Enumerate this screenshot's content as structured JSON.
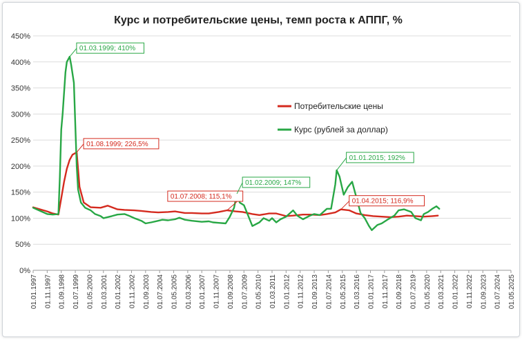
{
  "chart_data": {
    "type": "line",
    "title": "Курс и потребительские цены, темп роста к АППГ, %",
    "xlabel": "",
    "ylabel": "",
    "ylim": [
      0,
      450
    ],
    "yticks": [
      "0%",
      "50%",
      "100%",
      "150%",
      "200%",
      "250%",
      "300%",
      "350%",
      "400%",
      "450%"
    ],
    "xrange": [
      "1997-01",
      "2025-05"
    ],
    "xticks": [
      "01.01.1997",
      "01.11.1997",
      "01.09.1998",
      "01.07.1999",
      "01.05.2000",
      "01.03.2001",
      "01.01.2002",
      "01.11.2002",
      "01.09.2003",
      "01.07.2004",
      "01.05.2005",
      "01.03.2006",
      "01.01.2007",
      "01.11.2007",
      "01.09.2008",
      "01.07.2009",
      "01.05.2010",
      "01.03.2011",
      "01.01.2012",
      "01.11.2012",
      "01.09.2013",
      "01.07.2014",
      "01.05.2015",
      "01.03.2016",
      "01.01.2017",
      "01.11.2017",
      "01.09.2018",
      "01.07.2019",
      "01.05.2020",
      "01.03.2021",
      "01.01.2022",
      "01.11.2022",
      "01.09.2023",
      "01.07.2024",
      "01.05.2025"
    ],
    "grid": "horizontal",
    "legend_placement": "center-right",
    "series": [
      {
        "name": "Потребительские цены",
        "color": "#d42a1e",
        "points": [
          [
            "1997-01",
            121
          ],
          [
            "1997-06",
            117
          ],
          [
            "1997-11",
            113
          ],
          [
            "1998-03",
            109
          ],
          [
            "1998-07",
            107
          ],
          [
            "1998-09",
            138
          ],
          [
            "1998-11",
            170
          ],
          [
            "1999-01",
            195
          ],
          [
            "1999-03",
            212
          ],
          [
            "1999-05",
            222
          ],
          [
            "1999-08",
            226.5
          ],
          [
            "1999-10",
            160
          ],
          [
            "2000-01",
            130
          ],
          [
            "2000-06",
            121
          ],
          [
            "2001-01",
            120
          ],
          [
            "2001-06",
            124
          ],
          [
            "2002-01",
            117
          ],
          [
            "2002-06",
            116
          ],
          [
            "2003-01",
            115
          ],
          [
            "2003-06",
            114
          ],
          [
            "2004-01",
            112
          ],
          [
            "2004-06",
            111
          ],
          [
            "2005-01",
            112
          ],
          [
            "2005-06",
            113
          ],
          [
            "2006-01",
            110
          ],
          [
            "2006-06",
            110
          ],
          [
            "2007-01",
            109
          ],
          [
            "2007-06",
            109
          ],
          [
            "2008-01",
            112
          ],
          [
            "2008-07",
            115.1
          ],
          [
            "2009-01",
            113
          ],
          [
            "2009-06",
            112
          ],
          [
            "2010-01",
            108
          ],
          [
            "2010-06",
            106
          ],
          [
            "2011-01",
            109
          ],
          [
            "2011-06",
            109
          ],
          [
            "2012-01",
            104
          ],
          [
            "2012-06",
            105
          ],
          [
            "2013-01",
            107
          ],
          [
            "2013-06",
            107
          ],
          [
            "2014-01",
            106
          ],
          [
            "2014-06",
            108
          ],
          [
            "2014-12",
            111
          ],
          [
            "2015-04",
            116.9
          ],
          [
            "2015-10",
            115
          ],
          [
            "2016-03",
            109
          ],
          [
            "2016-09",
            106
          ],
          [
            "2017-03",
            104
          ],
          [
            "2017-09",
            103
          ],
          [
            "2018-03",
            102
          ],
          [
            "2018-09",
            103
          ],
          [
            "2019-03",
            105
          ],
          [
            "2019-09",
            104
          ],
          [
            "2020-03",
            103
          ],
          [
            "2020-09",
            104
          ],
          [
            "2021-01",
            105
          ]
        ]
      },
      {
        "name": "Курс (рублей за доллар)",
        "color": "#28a745",
        "points": [
          [
            "1997-01",
            120
          ],
          [
            "1997-06",
            114
          ],
          [
            "1997-11",
            108
          ],
          [
            "1998-03",
            107
          ],
          [
            "1998-07",
            108
          ],
          [
            "1998-08",
            180
          ],
          [
            "1998-09",
            270
          ],
          [
            "1998-10",
            300
          ],
          [
            "1998-12",
            380
          ],
          [
            "1999-01",
            400
          ],
          [
            "1999-03",
            410
          ],
          [
            "1999-04",
            395
          ],
          [
            "1999-06",
            360
          ],
          [
            "1999-08",
            200
          ],
          [
            "1999-09",
            155
          ],
          [
            "1999-11",
            130
          ],
          [
            "2000-02",
            120
          ],
          [
            "2000-06",
            115
          ],
          [
            "2000-09",
            108
          ],
          [
            "2001-01",
            104
          ],
          [
            "2001-03",
            100
          ],
          [
            "2001-09",
            104
          ],
          [
            "2002-01",
            107
          ],
          [
            "2002-06",
            108
          ],
          [
            "2002-09",
            105
          ],
          [
            "2003-01",
            100
          ],
          [
            "2003-06",
            95
          ],
          [
            "2003-09",
            90
          ],
          [
            "2004-01",
            92
          ],
          [
            "2004-06",
            95
          ],
          [
            "2004-09",
            97
          ],
          [
            "2005-01",
            96
          ],
          [
            "2005-06",
            98
          ],
          [
            "2005-09",
            101
          ],
          [
            "2006-01",
            97
          ],
          [
            "2006-06",
            95
          ],
          [
            "2007-01",
            93
          ],
          [
            "2007-06",
            94
          ],
          [
            "2007-09",
            92
          ],
          [
            "2008-01",
            91
          ],
          [
            "2008-06",
            90
          ],
          [
            "2008-09",
            103
          ],
          [
            "2008-12",
            120
          ],
          [
            "2009-02",
            147
          ],
          [
            "2009-04",
            130
          ],
          [
            "2009-07",
            125
          ],
          [
            "2009-10",
            105
          ],
          [
            "2010-01",
            85
          ],
          [
            "2010-06",
            92
          ],
          [
            "2010-09",
            100
          ],
          [
            "2011-01",
            95
          ],
          [
            "2011-03",
            100
          ],
          [
            "2011-06",
            92
          ],
          [
            "2011-09",
            98
          ],
          [
            "2012-01",
            103
          ],
          [
            "2012-06",
            115
          ],
          [
            "2012-09",
            105
          ],
          [
            "2013-01",
            98
          ],
          [
            "2013-06",
            105
          ],
          [
            "2013-09",
            108
          ],
          [
            "2014-01",
            106
          ],
          [
            "2014-06",
            118
          ],
          [
            "2014-09",
            118
          ],
          [
            "2014-12",
            165
          ],
          [
            "2015-01",
            192
          ],
          [
            "2015-03",
            180
          ],
          [
            "2015-06",
            145
          ],
          [
            "2015-09",
            160
          ],
          [
            "2015-12",
            170
          ],
          [
            "2016-03",
            140
          ],
          [
            "2016-06",
            110
          ],
          [
            "2016-09",
            100
          ],
          [
            "2016-12",
            85
          ],
          [
            "2017-02",
            77
          ],
          [
            "2017-06",
            87
          ],
          [
            "2017-09",
            90
          ],
          [
            "2018-01",
            97
          ],
          [
            "2018-06",
            105
          ],
          [
            "2018-09",
            115
          ],
          [
            "2019-01",
            117
          ],
          [
            "2019-06",
            112
          ],
          [
            "2019-09",
            100
          ],
          [
            "2020-01",
            96
          ],
          [
            "2020-03",
            108
          ],
          [
            "2020-06",
            112
          ],
          [
            "2020-09",
            118
          ],
          [
            "2020-12",
            123
          ],
          [
            "2021-02",
            118
          ]
        ]
      }
    ],
    "annotations": [
      {
        "text": "01.03.1999; 410%",
        "x": "1999-03",
        "y": 410,
        "series": 1,
        "color": "#28a745"
      },
      {
        "text": "01.08.1999; 226,5%",
        "x": "1999-08",
        "y": 226.5,
        "series": 0,
        "color": "#d42a1e"
      },
      {
        "text": "01.07.2008; 115,1%",
        "x": "2008-07",
        "y": 115.1,
        "series": 0,
        "color": "#d42a1e"
      },
      {
        "text": "01.02.2009; 147%",
        "x": "2009-02",
        "y": 147,
        "series": 1,
        "color": "#28a745"
      },
      {
        "text": "01.01.2015; 192%",
        "x": "2015-01",
        "y": 192,
        "series": 1,
        "color": "#28a745"
      },
      {
        "text": "01.04.2015; 116,9%",
        "x": "2015-04",
        "y": 116.9,
        "series": 0,
        "color": "#d42a1e"
      }
    ]
  }
}
